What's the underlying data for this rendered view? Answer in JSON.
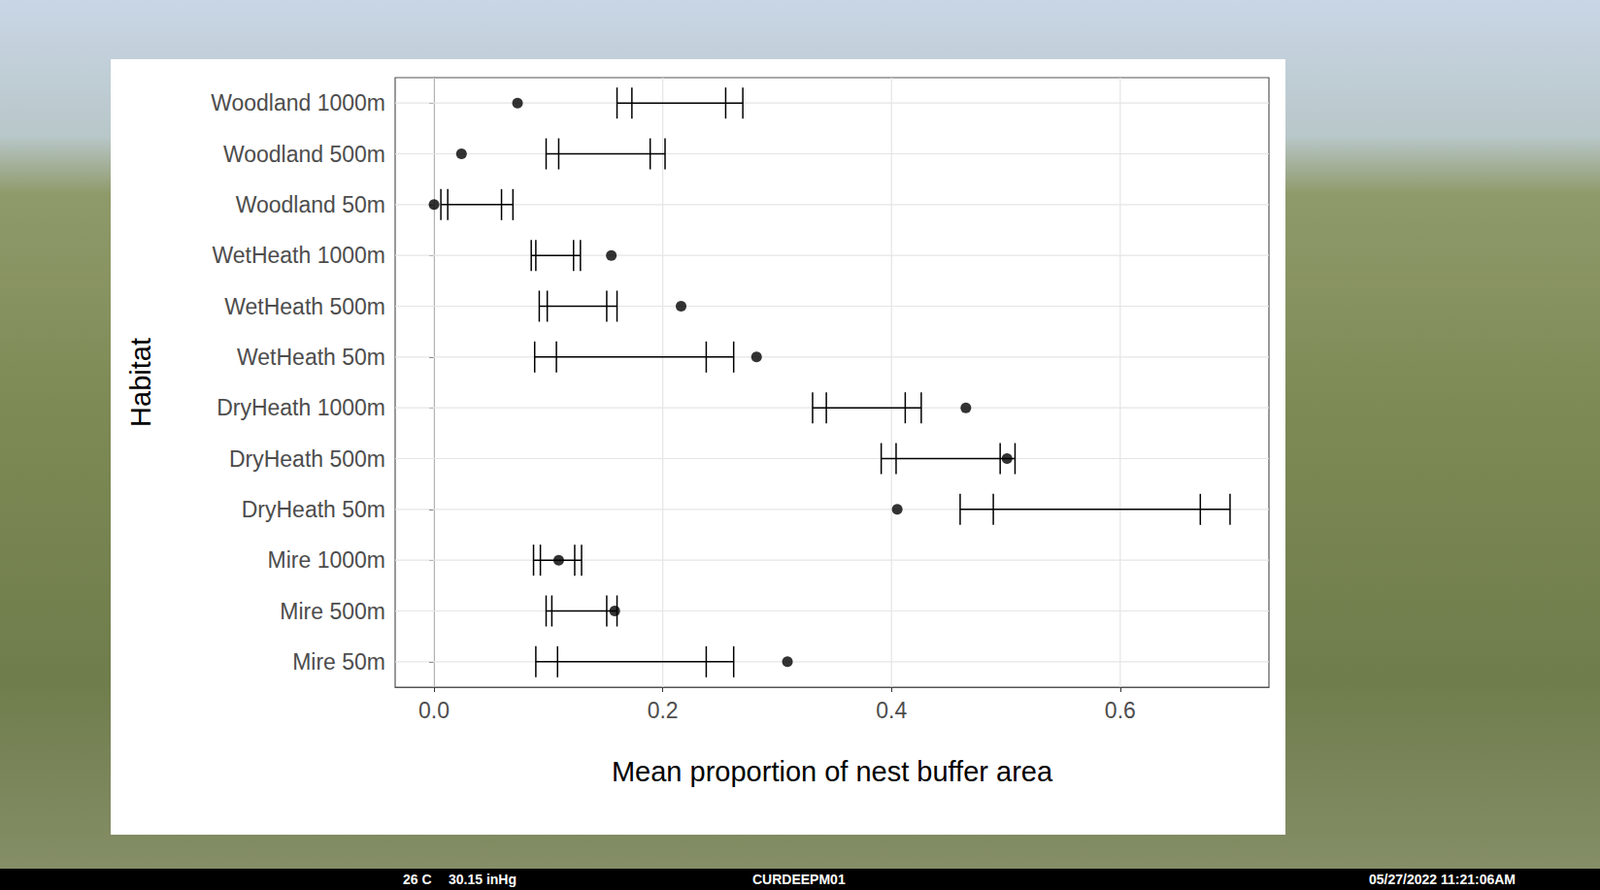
{
  "chart_data": {
    "type": "scatter",
    "orientation": "horizontal",
    "x_label": "Mean proportion of nest buffer area",
    "y_label": "Habitat",
    "categories": [
      "Woodland 1000m",
      "Woodland 500m",
      "Woodland 50m",
      "WetHeath 1000m",
      "WetHeath 500m",
      "WetHeath 50m",
      "DryHeath 1000m",
      "DryHeath 500m",
      "DryHeath 50m",
      "Mire 1000m",
      "Mire 500m",
      "Mire 50m"
    ],
    "values": [
      0.073,
      0.024,
      0.0,
      0.155,
      0.216,
      0.282,
      0.465,
      0.501,
      0.405,
      0.109,
      0.158,
      0.309
    ],
    "outer_interval": [
      [
        0.16,
        0.27
      ],
      [
        0.098,
        0.202
      ],
      [
        0.006,
        0.069
      ],
      [
        0.085,
        0.128
      ],
      [
        0.092,
        0.16
      ],
      [
        0.088,
        0.262
      ],
      [
        0.331,
        0.426
      ],
      [
        0.391,
        0.508
      ],
      [
        0.46,
        0.696
      ],
      [
        0.087,
        0.129
      ],
      [
        0.098,
        0.16
      ],
      [
        0.089,
        0.262
      ]
    ],
    "inner_interval": [
      [
        0.173,
        0.255
      ],
      [
        0.109,
        0.189
      ],
      [
        0.012,
        0.059
      ],
      [
        0.089,
        0.122
      ],
      [
        0.099,
        0.151
      ],
      [
        0.107,
        0.238
      ],
      [
        0.343,
        0.412
      ],
      [
        0.404,
        0.495
      ],
      [
        0.489,
        0.67
      ],
      [
        0.093,
        0.123
      ],
      [
        0.103,
        0.151
      ],
      [
        0.108,
        0.238
      ]
    ],
    "color": "#000000",
    "xlim": [
      -0.034,
      0.73
    ],
    "xticks": [
      {
        "value": 0,
        "label": "0.0"
      },
      {
        "value": 0.2,
        "label": "0.2"
      },
      {
        "value": 0.4,
        "label": "0.4"
      },
      {
        "value": 0.6,
        "label": "0.6"
      }
    ],
    "grid": true,
    "annotations": [
      "26 C",
      "30.15 inHg",
      "CURDEEPM01",
      "05/27/2022 11:21:06AM"
    ]
  }
}
